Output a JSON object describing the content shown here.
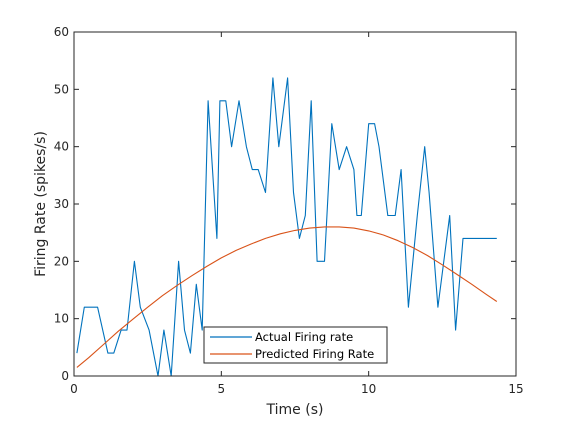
{
  "chart_data": {
    "type": "line",
    "xlabel": "Time (s)",
    "ylabel": "Firing Rate (spikes/s)",
    "xlim": [
      0,
      15
    ],
    "ylim": [
      0,
      60
    ],
    "xticks": [
      0,
      5,
      10,
      15
    ],
    "yticks": [
      0,
      10,
      20,
      30,
      40,
      50,
      60
    ],
    "legend": "bottom-center",
    "grid": false,
    "series": [
      {
        "name": "Actual Firing rate",
        "color": "#0072bd",
        "x": [
          0.1,
          0.35,
          0.55,
          0.8,
          1.15,
          1.35,
          1.6,
          1.8,
          2.05,
          2.25,
          2.55,
          2.85,
          3.05,
          3.3,
          3.55,
          3.75,
          3.95,
          4.15,
          4.35,
          4.55,
          4.85,
          4.95,
          5.15,
          5.35,
          5.6,
          5.85,
          6.05,
          6.25,
          6.5,
          6.75,
          6.95,
          7.25,
          7.45,
          7.65,
          7.85,
          8.05,
          8.25,
          8.5,
          8.75,
          9.0,
          9.25,
          9.5,
          9.6,
          9.75,
          10.0,
          10.2,
          10.35,
          10.65,
          10.9,
          11.1,
          11.35,
          11.65,
          11.9,
          12.05,
          12.35,
          12.55,
          12.75,
          12.95,
          13.2,
          13.45,
          13.65,
          13.85,
          14.1,
          14.35
        ],
        "y": [
          4,
          12,
          12,
          12,
          4,
          4,
          8,
          8,
          20,
          12,
          8,
          0,
          8,
          0,
          20,
          8,
          4,
          16,
          8,
          48,
          24,
          48,
          48,
          40,
          48,
          40,
          36,
          36,
          32,
          52,
          40,
          52,
          32,
          24,
          28,
          48,
          20,
          20,
          44,
          36,
          40,
          36,
          28,
          28,
          44,
          44,
          40,
          28,
          28,
          36,
          12,
          28,
          40,
          32,
          12,
          20,
          28,
          8,
          24,
          24,
          24,
          24,
          24,
          24
        ]
      },
      {
        "name": "Predicted Firing Rate",
        "color": "#d95319",
        "x": [
          0.1,
          0.5,
          1.0,
          1.5,
          2.0,
          2.5,
          3.0,
          3.5,
          4.0,
          4.5,
          5.0,
          5.5,
          6.0,
          6.5,
          7.0,
          7.5,
          8.0,
          8.5,
          9.0,
          9.5,
          10.0,
          10.5,
          11.0,
          11.5,
          12.0,
          12.5,
          13.0,
          13.5,
          14.0,
          14.35
        ],
        "y": [
          1.5,
          3.2,
          5.5,
          7.8,
          9.9,
          12.0,
          14.0,
          15.8,
          17.5,
          19.1,
          20.6,
          21.9,
          23.0,
          24.0,
          24.8,
          25.4,
          25.8,
          26.0,
          26.0,
          25.8,
          25.3,
          24.6,
          23.6,
          22.4,
          21.0,
          19.4,
          17.7,
          16.0,
          14.2,
          13.0
        ]
      }
    ]
  }
}
